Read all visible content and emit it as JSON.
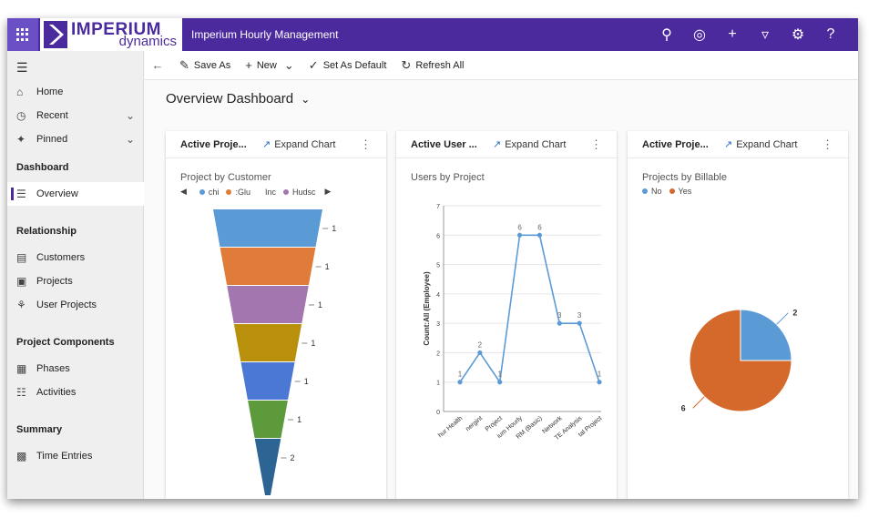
{
  "app": {
    "logo_top": "IMPERIUM",
    "logo_bottom": "dynamics",
    "title": "Imperium Hourly Management"
  },
  "topbar": {
    "icons": [
      "search-icon",
      "target-icon",
      "plus-icon",
      "filter-icon",
      "gear-icon",
      "help-icon"
    ]
  },
  "sidebar": {
    "home": "Home",
    "recent": "Recent",
    "pinned": "Pinned",
    "dashboard_head": "Dashboard",
    "overview": "Overview",
    "relationship_head": "Relationship",
    "customers": "Customers",
    "projects": "Projects",
    "user_projects": "User Projects",
    "components_head": "Project Components",
    "phases": "Phases",
    "activities": "Activities",
    "summary_head": "Summary",
    "time_entries": "Time Entries"
  },
  "cmdbar": {
    "save_as": "Save As",
    "new": "New",
    "set_default": "Set As Default",
    "refresh": "Refresh All"
  },
  "page": {
    "title": "Overview Dashboard"
  },
  "cards": [
    {
      "title": "Active Proje...",
      "expand": "Expand Chart",
      "chart_title": "Project by Customer"
    },
    {
      "title": "Active User ...",
      "expand": "Expand Chart",
      "chart_title": "Users by Project"
    },
    {
      "title": "Active Proje...",
      "expand": "Expand Chart",
      "chart_title": "Projects by Billable"
    }
  ],
  "colors": {
    "accent": "#4b2a9e",
    "funnel": [
      "#5b9bd5",
      "#e07b39",
      "#a376b0",
      "#b8900c",
      "#4a78d4",
      "#5c9a3c",
      "#2c6494"
    ],
    "line": "#5b9bd5",
    "pie_no": "#5b9bd5",
    "pie_yes": "#d4692b"
  },
  "chart_data": [
    {
      "type": "funnel",
      "title": "Project by Customer",
      "legend": [
        "chi",
        ":Glu",
        "Inc",
        "Hudsc"
      ],
      "values": [
        1,
        1,
        1,
        1,
        1,
        1,
        2
      ]
    },
    {
      "type": "line",
      "title": "Users by Project",
      "ylabel": "Count:All (Employee)",
      "ylim": [
        0,
        7
      ],
      "yticks": [
        0,
        1,
        2,
        3,
        4,
        5,
        6,
        7
      ],
      "categories": [
        "hur Health",
        "nergint",
        "Project",
        "ium Hourly",
        "RM (Basic)",
        "Network",
        "TE Analysis",
        "tal Project"
      ],
      "values": [
        1,
        2,
        1,
        6,
        6,
        3,
        3,
        1
      ]
    },
    {
      "type": "pie",
      "title": "Projects by Billable",
      "legend": [
        "No",
        "Yes"
      ],
      "values": [
        2,
        6
      ]
    }
  ]
}
